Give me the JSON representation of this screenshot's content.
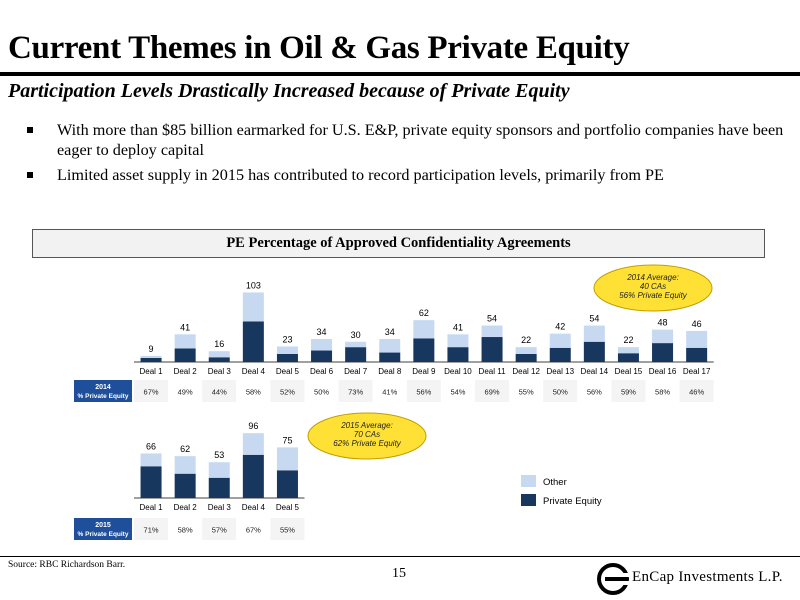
{
  "page": {
    "title": "Current Themes in Oil & Gas Private Equity",
    "subtitle": "Participation Levels Drastically Increased because of Private Equity",
    "bullets": [
      "With more than $85 billion earmarked for U.S. E&P, private equity sponsors and portfolio companies have been eager to deploy capital",
      "Limited asset supply in 2015 has contributed to record participation levels, primarily from PE"
    ],
    "chart_header": "PE Percentage of Approved Confidentiality Agreements",
    "source": "Source: RBC Richardson Barr.",
    "page_number": "15",
    "logo_text": "EnCap Investments L.P."
  },
  "colors": {
    "other": "#c6d9f1",
    "private_equity": "#17375e",
    "row_label_bg": "#1f4e9a",
    "callout_fill": "#ffe135",
    "callout_stroke": "#c29f00"
  },
  "chart_data": [
    {
      "type": "bar",
      "stacked": true,
      "categories": [
        "Deal 1",
        "Deal 2",
        "Deal 3",
        "Deal 4",
        "Deal 5",
        "Deal 6",
        "Deal 7",
        "Deal 8",
        "Deal 9",
        "Deal 10",
        "Deal 11",
        "Deal 12",
        "Deal 13",
        "Deal 14",
        "Deal 15",
        "Deal 16",
        "Deal 17"
      ],
      "totals": [
        9,
        41,
        16,
        103,
        23,
        34,
        30,
        34,
        62,
        41,
        54,
        22,
        42,
        54,
        22,
        48,
        46
      ],
      "pe_percent_label": [
        "67%",
        "49%",
        "44%",
        "58%",
        "52%",
        "50%",
        "73%",
        "41%",
        "56%",
        "54%",
        "69%",
        "55%",
        "50%",
        "56%",
        "59%",
        "58%",
        "46%"
      ],
      "series": [
        {
          "name": "Private Equity",
          "values": [
            6,
            20,
            7,
            60,
            12,
            17,
            22,
            14,
            35,
            22,
            37,
            12,
            21,
            30,
            13,
            28,
            21
          ]
        },
        {
          "name": "Other",
          "values": [
            3,
            21,
            9,
            43,
            11,
            17,
            8,
            20,
            27,
            19,
            17,
            10,
            21,
            24,
            9,
            20,
            25
          ]
        }
      ],
      "row_label": [
        "2014",
        "% Private Equity"
      ],
      "callout": [
        "2014 Average:",
        "40 CAs",
        "56% Private Equity"
      ],
      "grid": false
    },
    {
      "type": "bar",
      "stacked": true,
      "categories": [
        "Deal 1",
        "Deal 2",
        "Deal 3",
        "Deal 4",
        "Deal 5"
      ],
      "totals": [
        66,
        62,
        53,
        96,
        75
      ],
      "pe_percent_label": [
        "71%",
        "58%",
        "57%",
        "67%",
        "55%"
      ],
      "series": [
        {
          "name": "Private Equity",
          "values": [
            47,
            36,
            30,
            64,
            41
          ]
        },
        {
          "name": "Other",
          "values": [
            19,
            26,
            23,
            32,
            34
          ]
        }
      ],
      "row_label": [
        "2015",
        "% Private Equity"
      ],
      "callout": [
        "2015 Average:",
        "70 CAs",
        "62% Private Equity"
      ],
      "grid": false
    }
  ],
  "legend": {
    "items": [
      "Other",
      "Private Equity"
    ],
    "placement": "right"
  }
}
